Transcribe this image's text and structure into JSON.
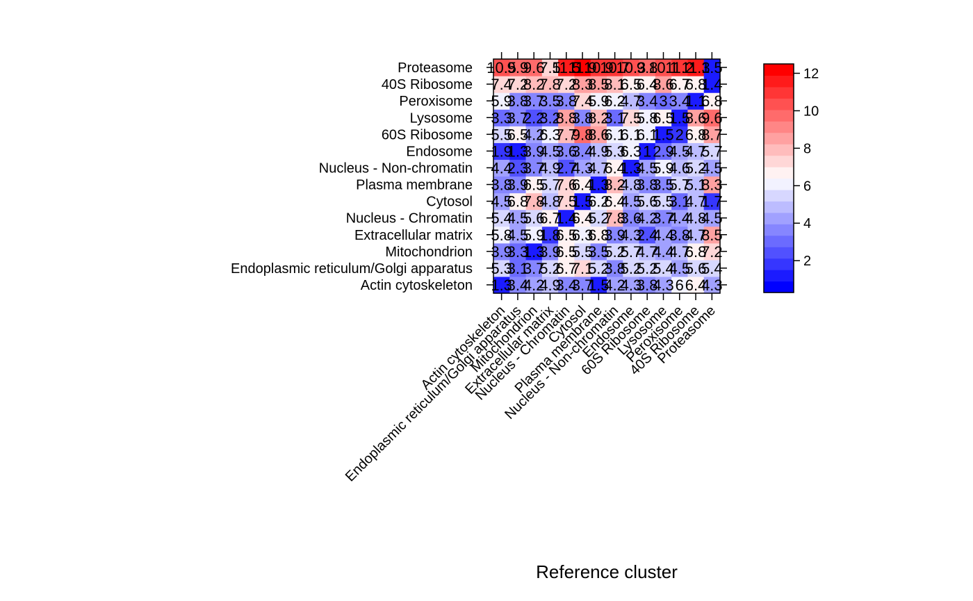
{
  "chart_data": {
    "type": "heatmap",
    "xlabel": "Reference cluster",
    "ylabel": "",
    "x_categories": [
      "Actin cytoskeleton",
      "Endoplasmic reticulum/Golgi apparatus",
      "Mitochondrion",
      "Extracellular matrix",
      "Nucleus - Chromatin",
      "Cytosol",
      "Plasma membrane",
      "Nucleus - Non-chromatin",
      "Endosome",
      "60S Ribosome",
      "Lysosome",
      "Peroxisome",
      "40S Ribosome",
      "Proteasome"
    ],
    "y_categories": [
      "Actin cytoskeleton",
      "Endoplasmic reticulum/Golgi apparatus",
      "Mitochondrion",
      "Extracellular matrix",
      "Nucleus - Chromatin",
      "Cytosol",
      "Plasma membrane",
      "Nucleus - Non-chromatin",
      "Endosome",
      "60S Ribosome",
      "Lysosome",
      "Peroxisome",
      "40S Ribosome",
      "Proteasome"
    ],
    "values": [
      [
        1.3,
        3.4,
        4.2,
        4.9,
        3.4,
        3.7,
        1.5,
        4.2,
        4.3,
        3.8,
        4.3,
        6.0,
        6.4,
        4.3
      ],
      [
        5.3,
        3.1,
        3.7,
        5.2,
        6.7,
        7.1,
        5.2,
        3.8,
        5.2,
        5.2,
        5.4,
        4.5,
        5.6,
        5.4
      ],
      [
        3.9,
        3.3,
        1.3,
        3.9,
        6.5,
        5.5,
        3.5,
        5.2,
        5.7,
        4.7,
        4.4,
        4.7,
        6.8,
        7.2
      ],
      [
        5.8,
        4.5,
        5.9,
        1.8,
        6.5,
        6.3,
        6.8,
        3.9,
        4.3,
        2.4,
        4.4,
        3.8,
        4.7,
        8.5
      ],
      [
        5.4,
        4.5,
        5.6,
        6.7,
        1.4,
        6.4,
        5.2,
        7.8,
        3.6,
        4.2,
        3.7,
        4.4,
        4.8,
        4.5
      ],
      [
        4.5,
        6.8,
        7.8,
        4.8,
        7.5,
        1.5,
        6.2,
        6.4,
        4.5,
        5.6,
        5.5,
        3.1,
        4.7,
        1.7
      ],
      [
        3.8,
        3.9,
        6.5,
        5.7,
        7.6,
        6.4,
        1.3,
        8.2,
        4.8,
        3.8,
        3.5,
        5.7,
        5.1,
        8.3
      ],
      [
        4.4,
        2.3,
        3.7,
        4.9,
        2.7,
        4.3,
        4.7,
        6.4,
        1.3,
        4.5,
        5.9,
        4.6,
        5.2,
        4.5
      ],
      [
        1.9,
        1.3,
        3.9,
        4.5,
        3.6,
        3.4,
        4.9,
        5.3,
        6.3,
        1.0,
        2.9,
        4.5,
        4.7,
        5.7
      ],
      [
        5.5,
        6.5,
        4.2,
        6.3,
        7.7,
        9.8,
        8.6,
        6.1,
        6.1,
        6.1,
        1.5,
        2.0,
        6.8,
        8.7
      ],
      [
        3.3,
        3.7,
        2.2,
        3.2,
        8.8,
        3.8,
        8.2,
        3.1,
        7.5,
        5.8,
        6.5,
        1.5,
        8.6,
        9.6
      ],
      [
        5.9,
        3.8,
        3.7,
        3.5,
        3.8,
        7.4,
        5.9,
        6.2,
        4.7,
        3.4,
        3.0,
        3.4,
        1.1,
        6.8
      ],
      [
        7.4,
        7.2,
        8.2,
        7.8,
        7.2,
        8.3,
        8.5,
        8.1,
        6.5,
        6.4,
        8.6,
        6.7,
        6.8,
        1.4
      ],
      [
        10.5,
        9.9,
        9.6,
        7.5,
        11.5,
        11.9,
        10.9,
        10.7,
        10.3,
        9.8,
        10.1,
        11.2,
        11.3,
        1.5
      ]
    ],
    "cell_labels": [
      [
        "1.3",
        "3.4",
        "4.2",
        "4.9",
        "3.4",
        "3.7",
        "1.5",
        "4.2",
        "4.3",
        "3.8",
        "4.3",
        "6",
        "6.4",
        "4.3"
      ],
      [
        "5.3",
        "3.1",
        "3.7",
        "5.2",
        "6.7",
        "7.1",
        "5.2",
        "3.8",
        "5.2",
        "5.2",
        "5.4",
        "4.5",
        "5.6",
        "5.4"
      ],
      [
        "3.9",
        "3.3",
        "1.3",
        "3.9",
        "6.5",
        "5.5",
        "3.5",
        "5.2",
        "5.7",
        "4.7",
        "4.4",
        "4.7",
        "6.8",
        "7.2"
      ],
      [
        "5.8",
        "4.5",
        "5.9",
        "1.8",
        "6.5",
        "6.3",
        "6.8",
        "3.9",
        "4.3",
        "2.4",
        "4.4",
        "3.8",
        "4.7",
        "8.5"
      ],
      [
        "5.4",
        "4.5",
        "5.6",
        "6.7",
        "1.4",
        "6.4",
        "5.2",
        "7.8",
        "3.6",
        "4.2",
        "3.7",
        "4.4",
        "4.8",
        "4.5"
      ],
      [
        "4.5",
        "6.8",
        "7.8",
        "4.8",
        "7.5",
        "1.5",
        "6.2",
        "6.4",
        "4.5",
        "5.6",
        "5.5",
        "3.1",
        "4.7",
        "1.7"
      ],
      [
        "3.8",
        "3.9",
        "6.5",
        "5.7",
        "7.6",
        "6.4",
        "1.3",
        "8.2",
        "4.8",
        "3.8",
        "3.5",
        "5.7",
        "5.1",
        "8.3"
      ],
      [
        "4.4",
        "2.3",
        "3.7",
        "4.9",
        "2.7",
        "4.3",
        "4.7",
        "6.4",
        "1.3",
        "4.5",
        "5.9",
        "4.6",
        "5.2",
        "4.5"
      ],
      [
        "1.9",
        "1.3",
        "3.9",
        "4.5",
        "3.6",
        "3.4",
        "4.9",
        "5.3",
        "6.3",
        "1",
        "2.9",
        "4.5",
        "4.7",
        "5.7"
      ],
      [
        "5.5",
        "6.5",
        "4.2",
        "6.3",
        "7.7",
        "9.8",
        "8.6",
        "6.1",
        "6.1",
        "6.1",
        "1.5",
        "2",
        "6.8",
        "8.7"
      ],
      [
        "3.3",
        "3.7",
        "2.2",
        "3.2",
        "8.8",
        "3.8",
        "8.2",
        "3.1",
        "7.5",
        "5.8",
        "6.5",
        "1.5",
        "8.6",
        "9.6"
      ],
      [
        "5.9",
        "3.8",
        "3.7",
        "3.5",
        "3.8",
        "7.4",
        "5.9",
        "6.2",
        "4.7",
        "3.4",
        "3",
        "3.4",
        "1.1",
        "6.8"
      ],
      [
        "7.4",
        "7.2",
        "8.2",
        "7.8",
        "7.2",
        "8.3",
        "8.5",
        "8.1",
        "6.5",
        "6.4",
        "8.6",
        "6.7",
        "6.8",
        "1.4"
      ],
      [
        "10.5",
        "9.9",
        "9.6",
        "7.5",
        "11.5",
        "11.9",
        "10.9",
        "10.7",
        "10.3",
        "9.8",
        "10.1",
        "11.2",
        "11.3",
        "1.5"
      ]
    ],
    "colorbar": {
      "range": [
        0.3,
        12.5
      ],
      "ticks": [
        2,
        4,
        6,
        8,
        10,
        12
      ],
      "colors": [
        "#0000ff",
        "#1b1bff",
        "#3636ff",
        "#5151ff",
        "#6b6bff",
        "#8686ff",
        "#a1a1ff",
        "#bcbcff",
        "#d7d7ff",
        "#f2f2ff",
        "#fff2f2",
        "#ffd7d7",
        "#ffbcbc",
        "#ffa1a1",
        "#ff8686",
        "#ff6b6b",
        "#ff5151",
        "#ff3636",
        "#ff1b1b",
        "#ff0000"
      ]
    },
    "grid": false,
    "legend": "right"
  }
}
